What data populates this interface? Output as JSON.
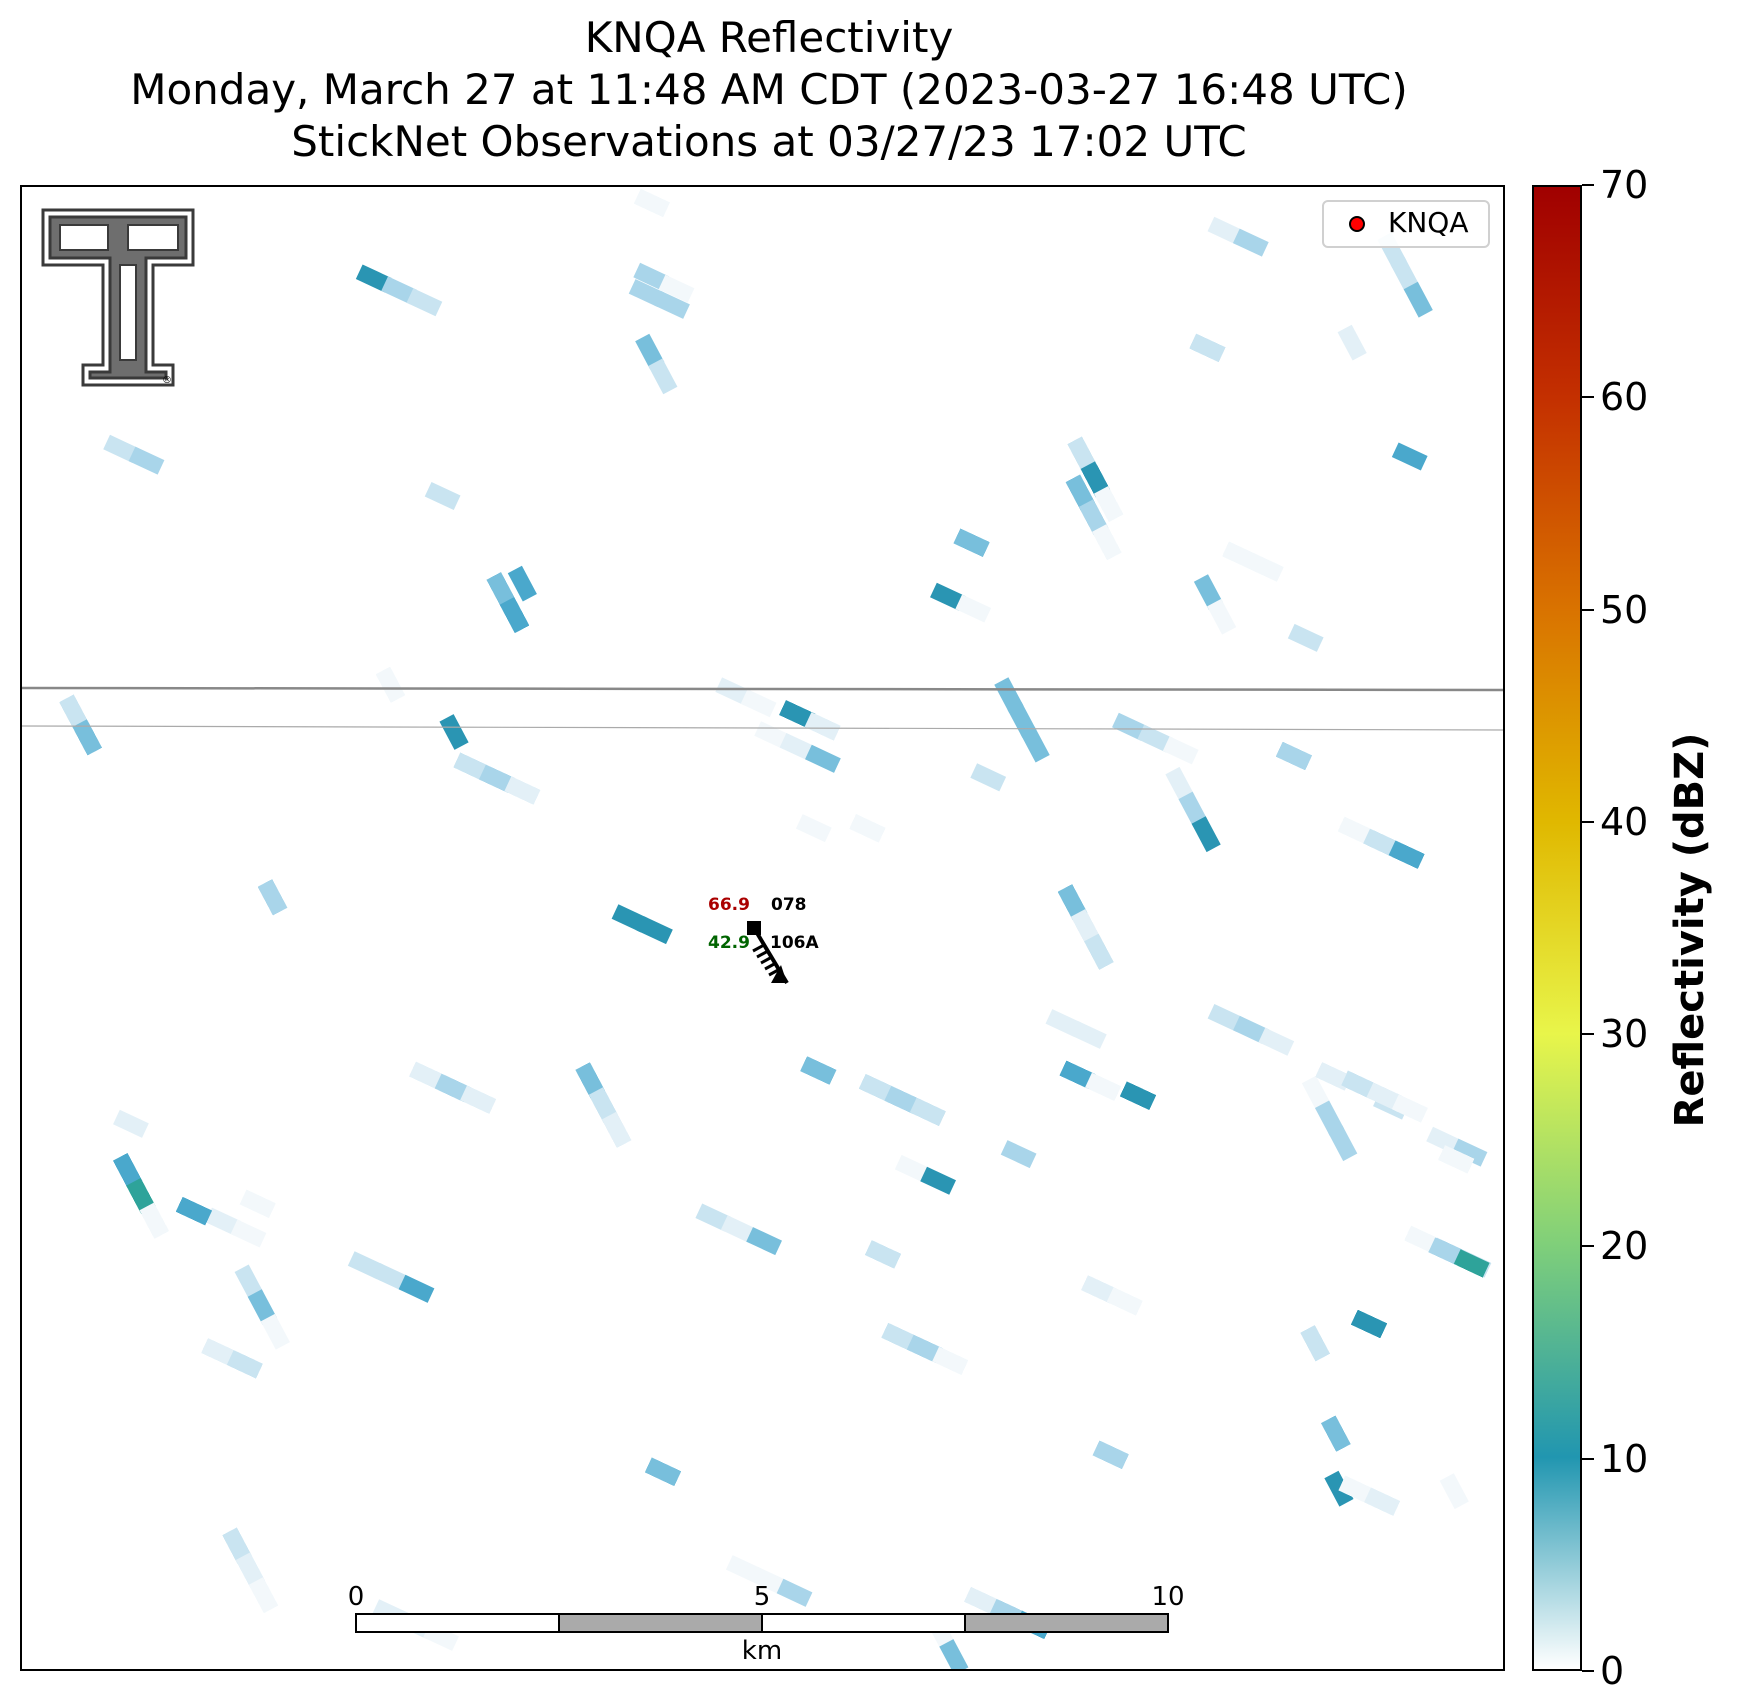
{
  "title": {
    "line1": "KNQA Reflectivity",
    "line2": "Monday, March 27 at 11:48 AM CDT (2023-03-27 16:48 UTC)",
    "line3": "StickNet Observations at 03/27/23 17:02 UTC"
  },
  "legend": {
    "label": "KNQA",
    "marker_color": "#ff0000"
  },
  "logo": {
    "name": "texas-tech-double-t-logo",
    "registered_mark": "®"
  },
  "station": {
    "temperature": "66.9",
    "pressure": "078",
    "dewpoint": "42.9",
    "station_id": "106A",
    "temp_color": "#aa0000",
    "dewpoint_color": "#006400"
  },
  "scale_bar": {
    "ticks": [
      "0",
      "5",
      "10"
    ],
    "unit": "km"
  },
  "colorbar": {
    "title": "Reflectivity (dBZ)",
    "min": 0,
    "max": 70,
    "ticks": [
      "0",
      "10",
      "20",
      "30",
      "40",
      "50",
      "60",
      "70"
    ],
    "colors": [
      "#ffffff",
      "#2196b0",
      "#7fcf7a",
      "#e8f54a",
      "#e0b800",
      "#d97300",
      "#c43000",
      "#a00000"
    ]
  }
}
